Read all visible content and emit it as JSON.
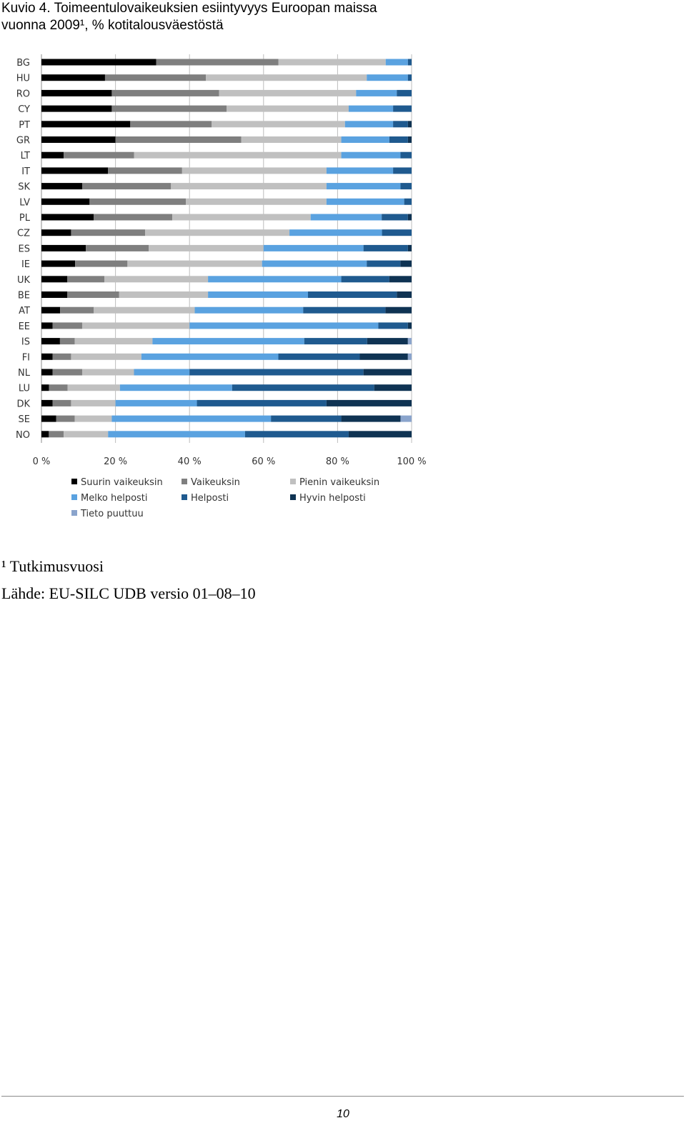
{
  "header": {
    "title_line1": "Kuvio 4. Toimeentulovaikeuksien esiintyvyys Euroopan maissa",
    "title_line2": "vuonna 2009¹, % kotitalousväestöstä"
  },
  "footnotes": {
    "note": "¹ Tutkimusvuosi",
    "source": "Lähde: EU-SILC UDB versio 01–08–10"
  },
  "page_number": "10",
  "chart_data": {
    "type": "bar",
    "orientation": "horizontal",
    "stacked": true,
    "percent_stacked": true,
    "categories": [
      "BG",
      "HU",
      "RO",
      "CY",
      "PT",
      "GR",
      "LT",
      "IT",
      "SK",
      "LV",
      "PL",
      "CZ",
      "ES",
      "IE",
      "UK",
      "BE",
      "AT",
      "EE",
      "IS",
      "FI",
      "NL",
      "LU",
      "DK",
      "SE",
      "NO"
    ],
    "x_tick_labels": [
      "0 %",
      "20 %",
      "40 %",
      "60 %",
      "80 %",
      "100 %"
    ],
    "xlim": [
      0,
      100
    ],
    "grid": "vertical",
    "legend_position": "bottom",
    "colors": [
      "#000000",
      "#7f7f7f",
      "#c0c0c0",
      "#5aa2e0",
      "#1f5a8f",
      "#0f3353",
      "#8aa4cc"
    ],
    "series": [
      {
        "name": "Suurin vaikeuksin",
        "values": [
          31,
          17,
          19,
          19,
          24,
          20,
          6,
          18,
          11,
          13,
          14,
          8,
          12,
          9,
          7,
          7,
          5,
          3,
          5,
          3,
          3,
          2,
          3,
          4,
          2
        ]
      },
      {
        "name": "Vaikeuksin",
        "values": [
          33,
          27,
          29,
          31,
          22,
          34,
          19,
          20,
          24,
          26,
          21,
          20,
          17,
          14,
          10,
          14,
          9,
          8,
          4,
          5,
          8,
          5,
          5,
          5,
          4
        ]
      },
      {
        "name": "Pienin vaikeuksin",
        "values": [
          29,
          43,
          37,
          33,
          36,
          27,
          56,
          39,
          42,
          38,
          37,
          39,
          31,
          36,
          28,
          24,
          27,
          29,
          21,
          19,
          14,
          14,
          12,
          10,
          12
        ]
      },
      {
        "name": "Melko helposti",
        "values": [
          6,
          11,
          11,
          12,
          13,
          13,
          16,
          18,
          20,
          21,
          19,
          25,
          27,
          28,
          36,
          27,
          29,
          51,
          41,
          37,
          15,
          30,
          22,
          43,
          37
        ]
      },
      {
        "name": "Helposti",
        "values": [
          1,
          1,
          4,
          5,
          4,
          5,
          3,
          5,
          3,
          2,
          7,
          8,
          12,
          9,
          13,
          24,
          22,
          8,
          17,
          22,
          47,
          38,
          35,
          19,
          28
        ]
      },
      {
        "name": "Hyvin helposti",
        "values": [
          0,
          0,
          0,
          0,
          1,
          1,
          0,
          0,
          0,
          0,
          1,
          0,
          1,
          3,
          6,
          4,
          7,
          1,
          11,
          13,
          13,
          10,
          23,
          16,
          17
        ]
      },
      {
        "name": "Tieto puuttuu",
        "values": [
          0,
          0,
          0,
          0,
          0,
          0,
          0,
          0,
          0,
          0,
          0,
          0,
          0,
          0,
          0,
          0,
          0,
          0,
          1,
          1,
          0,
          0,
          0,
          3,
          0
        ]
      }
    ]
  }
}
